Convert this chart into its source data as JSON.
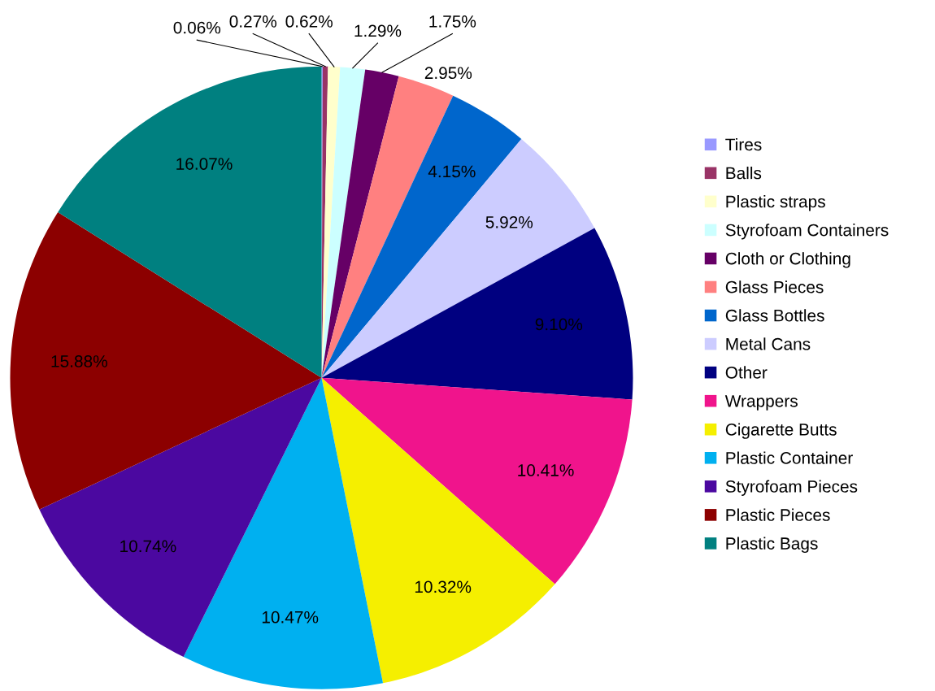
{
  "chart_data": {
    "type": "pie",
    "categories": [
      "Tires",
      "Balls",
      "Plastic straps",
      "Styrofoam Containers",
      "Cloth or Clothing",
      "Glass Pieces",
      "Glass Bottles",
      "Metal Cans",
      "Other",
      "Wrappers",
      "Cigarette Butts",
      "Plastic Container",
      "Styrofoam Pieces",
      "Plastic Pieces",
      "Plastic Bags"
    ],
    "values": [
      0.06,
      0.27,
      0.62,
      1.29,
      1.75,
      2.95,
      4.15,
      5.92,
      9.1,
      10.41,
      10.32,
      10.47,
      10.74,
      15.88,
      16.07
    ],
    "value_labels": [
      "0.06%",
      "0.27%",
      "0.62%",
      "1.29%",
      "1.75%",
      "2.95%",
      "4.15%",
      "5.92%",
      "9.10%",
      "10.41%",
      "10.32%",
      "10.47%",
      "10.74%",
      "15.88%",
      "16.07%"
    ],
    "colors": [
      "#9999ff",
      "#993366",
      "#ffffcc",
      "#ccffff",
      "#660066",
      "#ff8080",
      "#0066cc",
      "#ccccff",
      "#000080",
      "#f0148c",
      "#f5ef00",
      "#00b0f0",
      "#4b08a0",
      "#8c0000",
      "#008080"
    ],
    "legend": "right"
  }
}
